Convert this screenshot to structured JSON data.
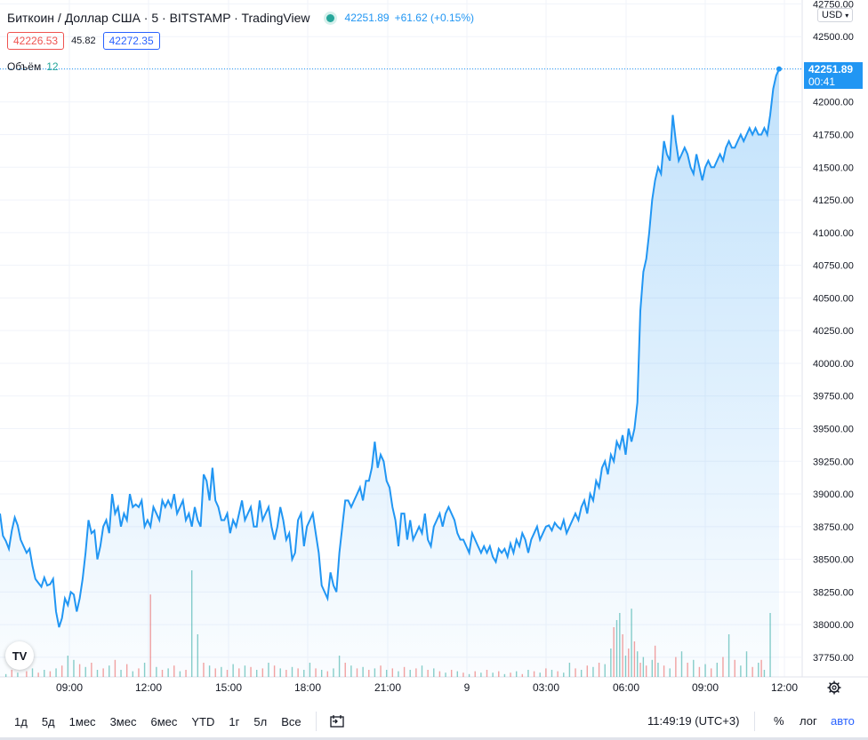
{
  "header": {
    "symbol": "Биткоин / Доллар США · 5 · BITSTAMP · TradingView",
    "price": "42251.89",
    "change": "+61.62 (+0.15%)",
    "status_color": "#26a69a"
  },
  "quotes": {
    "sell": "42226.53",
    "spread": "45.82",
    "buy": "42272.35"
  },
  "volume": {
    "label": "Объём",
    "value": "12"
  },
  "currency": "USD",
  "last_price": {
    "price": "42251.89",
    "countdown": "00:41"
  },
  "bottom_bar": {
    "ranges": [
      "1д",
      "5д",
      "1мес",
      "3мес",
      "6мес",
      "YTD",
      "1г",
      "5л",
      "Все"
    ],
    "clock": "11:49:19 (UTC+3)",
    "percent": "%",
    "log": "лог",
    "auto": "авто"
  },
  "tv_logo": "TV",
  "colors": {
    "line": "#2196f3",
    "up": "#26a69a",
    "down": "#ef5350",
    "grid": "#f0f3fa",
    "accent": "#2962ff"
  },
  "chart_data": {
    "type": "area",
    "y_ticks": [
      "37750.00",
      "38000.00",
      "38250.00",
      "38500.00",
      "38750.00",
      "39000.00",
      "39250.00",
      "39500.00",
      "39750.00",
      "40000.00",
      "40250.00",
      "40500.00",
      "40750.00",
      "41000.00",
      "41250.00",
      "41500.00",
      "41750.00",
      "42000.00",
      "42250.00",
      "42500.00",
      "42750.00"
    ],
    "x_ticks": [
      "09:00",
      "12:00",
      "15:00",
      "18:00",
      "21:00",
      "9",
      "03:00",
      "06:00",
      "09:00",
      "12:00"
    ],
    "ylim": [
      37600,
      42780
    ],
    "grid": true,
    "series": [
      {
        "values": [
          38850,
          38680,
          38640,
          38580,
          38720,
          38820,
          38760,
          38650,
          38600,
          38550,
          38580,
          38450,
          38350,
          38320,
          38290,
          38360,
          38300,
          38310,
          38350,
          38100,
          37980,
          38050,
          38200,
          38150,
          38250,
          38230,
          38100,
          38200,
          38350,
          38550,
          38800,
          38700,
          38720,
          38500,
          38600,
          38750,
          38800,
          38700,
          39000,
          38850,
          38900,
          38750,
          38850,
          38800,
          39000,
          38900,
          38920,
          38900,
          38950,
          38750,
          38800,
          38750,
          38900,
          38850,
          38800,
          38950,
          38900,
          38950,
          38900,
          39000,
          38850,
          38900,
          38950,
          38800,
          38850,
          38750,
          38900,
          38800,
          38750,
          39150,
          39100,
          38950,
          39200,
          38950,
          38900,
          38800,
          38800,
          38850,
          38700,
          38800,
          38750,
          38850,
          38950,
          38800,
          38850,
          38900,
          38750,
          38750,
          38950,
          38800,
          38850,
          38900,
          38750,
          38650,
          38750,
          38900,
          38800,
          38650,
          38700,
          38500,
          38550,
          38800,
          38850,
          38600,
          38750,
          38800,
          38850,
          38700,
          38550,
          38300,
          38250,
          38200,
          38400,
          38300,
          38250,
          38550,
          38750,
          38950,
          38950,
          38900,
          38950,
          39000,
          39050,
          38950,
          39100,
          39100,
          39200,
          39400,
          39200,
          39300,
          39250,
          39100,
          39050,
          38900,
          38800,
          38600,
          38850,
          38850,
          38650,
          38800,
          38650,
          38700,
          38750,
          38700,
          38850,
          38650,
          38600,
          38750,
          38800,
          38850,
          38750,
          38850,
          38900,
          38850,
          38800,
          38700,
          38650,
          38650,
          38600,
          38550,
          38700,
          38650,
          38600,
          38550,
          38600,
          38550,
          38600,
          38520,
          38480,
          38580,
          38550,
          38580,
          38520,
          38620,
          38550,
          38650,
          38600,
          38700,
          38650,
          38550,
          38650,
          38700,
          38750,
          38650,
          38700,
          38750,
          38760,
          38720,
          38780,
          38750,
          38730,
          38800,
          38700,
          38750,
          38800,
          38850,
          38800,
          38900,
          38950,
          38850,
          39000,
          38950,
          39100,
          39050,
          39200,
          39250,
          39150,
          39300,
          39250,
          39400,
          39350,
          39450,
          39300,
          39500,
          39400,
          39500,
          39700,
          40400,
          40700,
          40800,
          41000,
          41250,
          41400,
          41500,
          41450,
          41700,
          41600,
          41550,
          41900,
          41700,
          41550,
          41600,
          41650,
          41600,
          41500,
          41450,
          41600,
          41500,
          41400,
          41500,
          41550,
          41500,
          41500,
          41550,
          41600,
          41550,
          41650,
          41700,
          41650,
          41650,
          41700,
          41750,
          41700,
          41750,
          41800,
          41750,
          41800,
          41750,
          41750,
          41800,
          41750,
          41900,
          42100,
          42200,
          42252
        ]
      }
    ],
    "volume_bars": [
      {
        "i": 2,
        "v": 0.02,
        "up": true
      },
      {
        "i": 4,
        "v": 0.05,
        "up": false
      },
      {
        "i": 6,
        "v": 0.03,
        "up": true
      },
      {
        "i": 9,
        "v": 0.04,
        "up": false
      },
      {
        "i": 11,
        "v": 0.06,
        "up": true
      },
      {
        "i": 13,
        "v": 0.03,
        "up": false
      },
      {
        "i": 15,
        "v": 0.05,
        "up": true
      },
      {
        "i": 17,
        "v": 0.04,
        "up": false
      },
      {
        "i": 19,
        "v": 0.06,
        "up": true
      },
      {
        "i": 21,
        "v": 0.08,
        "up": false
      },
      {
        "i": 23,
        "v": 0.15,
        "up": true
      },
      {
        "i": 25,
        "v": 0.12,
        "up": true
      },
      {
        "i": 27,
        "v": 0.09,
        "up": false
      },
      {
        "i": 29,
        "v": 0.07,
        "up": true
      },
      {
        "i": 31,
        "v": 0.1,
        "up": false
      },
      {
        "i": 33,
        "v": 0.05,
        "up": true
      },
      {
        "i": 35,
        "v": 0.06,
        "up": false
      },
      {
        "i": 37,
        "v": 0.08,
        "up": true
      },
      {
        "i": 39,
        "v": 0.12,
        "up": false
      },
      {
        "i": 41,
        "v": 0.05,
        "up": true
      },
      {
        "i": 43,
        "v": 0.09,
        "up": false
      },
      {
        "i": 45,
        "v": 0.04,
        "up": true
      },
      {
        "i": 47,
        "v": 0.06,
        "up": false
      },
      {
        "i": 49,
        "v": 0.1,
        "up": true
      },
      {
        "i": 51,
        "v": 0.58,
        "up": false
      },
      {
        "i": 53,
        "v": 0.07,
        "up": true
      },
      {
        "i": 55,
        "v": 0.05,
        "up": false
      },
      {
        "i": 57,
        "v": 0.06,
        "up": true
      },
      {
        "i": 59,
        "v": 0.08,
        "up": false
      },
      {
        "i": 61,
        "v": 0.04,
        "up": true
      },
      {
        "i": 63,
        "v": 0.05,
        "up": false
      },
      {
        "i": 65,
        "v": 0.75,
        "up": true
      },
      {
        "i": 67,
        "v": 0.3,
        "up": true
      },
      {
        "i": 69,
        "v": 0.1,
        "up": false
      },
      {
        "i": 71,
        "v": 0.08,
        "up": true
      },
      {
        "i": 73,
        "v": 0.06,
        "up": false
      },
      {
        "i": 75,
        "v": 0.07,
        "up": true
      },
      {
        "i": 77,
        "v": 0.05,
        "up": false
      },
      {
        "i": 79,
        "v": 0.09,
        "up": true
      },
      {
        "i": 81,
        "v": 0.06,
        "up": false
      },
      {
        "i": 83,
        "v": 0.08,
        "up": true
      },
      {
        "i": 85,
        "v": 0.07,
        "up": false
      },
      {
        "i": 87,
        "v": 0.05,
        "up": true
      },
      {
        "i": 89,
        "v": 0.06,
        "up": false
      },
      {
        "i": 91,
        "v": 0.1,
        "up": true
      },
      {
        "i": 93,
        "v": 0.08,
        "up": false
      },
      {
        "i": 95,
        "v": 0.06,
        "up": true
      },
      {
        "i": 97,
        "v": 0.05,
        "up": false
      },
      {
        "i": 99,
        "v": 0.07,
        "up": true
      },
      {
        "i": 101,
        "v": 0.06,
        "up": false
      },
      {
        "i": 103,
        "v": 0.05,
        "up": true
      },
      {
        "i": 105,
        "v": 0.1,
        "up": true
      },
      {
        "i": 107,
        "v": 0.06,
        "up": false
      },
      {
        "i": 109,
        "v": 0.05,
        "up": true
      },
      {
        "i": 111,
        "v": 0.04,
        "up": false
      },
      {
        "i": 113,
        "v": 0.06,
        "up": true
      },
      {
        "i": 115,
        "v": 0.15,
        "up": true
      },
      {
        "i": 117,
        "v": 0.1,
        "up": false
      },
      {
        "i": 119,
        "v": 0.08,
        "up": true
      },
      {
        "i": 121,
        "v": 0.06,
        "up": false
      },
      {
        "i": 123,
        "v": 0.07,
        "up": true
      },
      {
        "i": 125,
        "v": 0.05,
        "up": false
      },
      {
        "i": 127,
        "v": 0.06,
        "up": true
      },
      {
        "i": 129,
        "v": 0.08,
        "up": false
      },
      {
        "i": 131,
        "v": 0.05,
        "up": true
      },
      {
        "i": 133,
        "v": 0.06,
        "up": false
      },
      {
        "i": 135,
        "v": 0.04,
        "up": true
      },
      {
        "i": 137,
        "v": 0.07,
        "up": false
      },
      {
        "i": 139,
        "v": 0.05,
        "up": true
      },
      {
        "i": 141,
        "v": 0.06,
        "up": false
      },
      {
        "i": 143,
        "v": 0.08,
        "up": true
      },
      {
        "i": 145,
        "v": 0.05,
        "up": false
      },
      {
        "i": 147,
        "v": 0.06,
        "up": true
      },
      {
        "i": 149,
        "v": 0.04,
        "up": false
      },
      {
        "i": 151,
        "v": 0.03,
        "up": true
      },
      {
        "i": 153,
        "v": 0.05,
        "up": false
      },
      {
        "i": 155,
        "v": 0.04,
        "up": true
      },
      {
        "i": 157,
        "v": 0.03,
        "up": false
      },
      {
        "i": 159,
        "v": 0.02,
        "up": true
      },
      {
        "i": 161,
        "v": 0.04,
        "up": false
      },
      {
        "i": 163,
        "v": 0.03,
        "up": true
      },
      {
        "i": 165,
        "v": 0.05,
        "up": false
      },
      {
        "i": 167,
        "v": 0.03,
        "up": true
      },
      {
        "i": 169,
        "v": 0.04,
        "up": false
      },
      {
        "i": 171,
        "v": 0.02,
        "up": true
      },
      {
        "i": 173,
        "v": 0.03,
        "up": false
      },
      {
        "i": 175,
        "v": 0.04,
        "up": true
      },
      {
        "i": 177,
        "v": 0.02,
        "up": false
      },
      {
        "i": 179,
        "v": 0.05,
        "up": true
      },
      {
        "i": 181,
        "v": 0.04,
        "up": false
      },
      {
        "i": 183,
        "v": 0.03,
        "up": true
      },
      {
        "i": 185,
        "v": 0.06,
        "up": false
      },
      {
        "i": 187,
        "v": 0.05,
        "up": true
      },
      {
        "i": 189,
        "v": 0.04,
        "up": false
      },
      {
        "i": 191,
        "v": 0.03,
        "up": true
      },
      {
        "i": 193,
        "v": 0.1,
        "up": true
      },
      {
        "i": 195,
        "v": 0.06,
        "up": false
      },
      {
        "i": 197,
        "v": 0.05,
        "up": true
      },
      {
        "i": 199,
        "v": 0.08,
        "up": false
      },
      {
        "i": 201,
        "v": 0.07,
        "up": true
      },
      {
        "i": 203,
        "v": 0.1,
        "up": false
      },
      {
        "i": 205,
        "v": 0.09,
        "up": true
      },
      {
        "i": 207,
        "v": 0.2,
        "up": true
      },
      {
        "i": 208,
        "v": 0.35,
        "up": false
      },
      {
        "i": 209,
        "v": 0.4,
        "up": true
      },
      {
        "i": 210,
        "v": 0.45,
        "up": true
      },
      {
        "i": 211,
        "v": 0.3,
        "up": false
      },
      {
        "i": 212,
        "v": 0.15,
        "up": true
      },
      {
        "i": 213,
        "v": 0.2,
        "up": false
      },
      {
        "i": 214,
        "v": 0.48,
        "up": true
      },
      {
        "i": 215,
        "v": 0.25,
        "up": false
      },
      {
        "i": 216,
        "v": 0.18,
        "up": true
      },
      {
        "i": 217,
        "v": 0.1,
        "up": false
      },
      {
        "i": 218,
        "v": 0.14,
        "up": true
      },
      {
        "i": 219,
        "v": 0.08,
        "up": false
      },
      {
        "i": 221,
        "v": 0.12,
        "up": true
      },
      {
        "i": 222,
        "v": 0.22,
        "up": false
      },
      {
        "i": 223,
        "v": 0.1,
        "up": true
      },
      {
        "i": 225,
        "v": 0.08,
        "up": false
      },
      {
        "i": 227,
        "v": 0.06,
        "up": true
      },
      {
        "i": 229,
        "v": 0.14,
        "up": false
      },
      {
        "i": 231,
        "v": 0.18,
        "up": true
      },
      {
        "i": 233,
        "v": 0.1,
        "up": false
      },
      {
        "i": 235,
        "v": 0.12,
        "up": true
      },
      {
        "i": 237,
        "v": 0.07,
        "up": false
      },
      {
        "i": 239,
        "v": 0.09,
        "up": true
      },
      {
        "i": 241,
        "v": 0.06,
        "up": false
      },
      {
        "i": 243,
        "v": 0.1,
        "up": true
      },
      {
        "i": 245,
        "v": 0.14,
        "up": false
      },
      {
        "i": 247,
        "v": 0.3,
        "up": true
      },
      {
        "i": 249,
        "v": 0.12,
        "up": false
      },
      {
        "i": 251,
        "v": 0.08,
        "up": true
      },
      {
        "i": 253,
        "v": 0.18,
        "up": true
      },
      {
        "i": 255,
        "v": 0.07,
        "up": false
      },
      {
        "i": 257,
        "v": 0.1,
        "up": true
      },
      {
        "i": 258,
        "v": 0.12,
        "up": false
      },
      {
        "i": 259,
        "v": 0.05,
        "up": true
      },
      {
        "i": 261,
        "v": 0.45,
        "up": true
      }
    ]
  }
}
